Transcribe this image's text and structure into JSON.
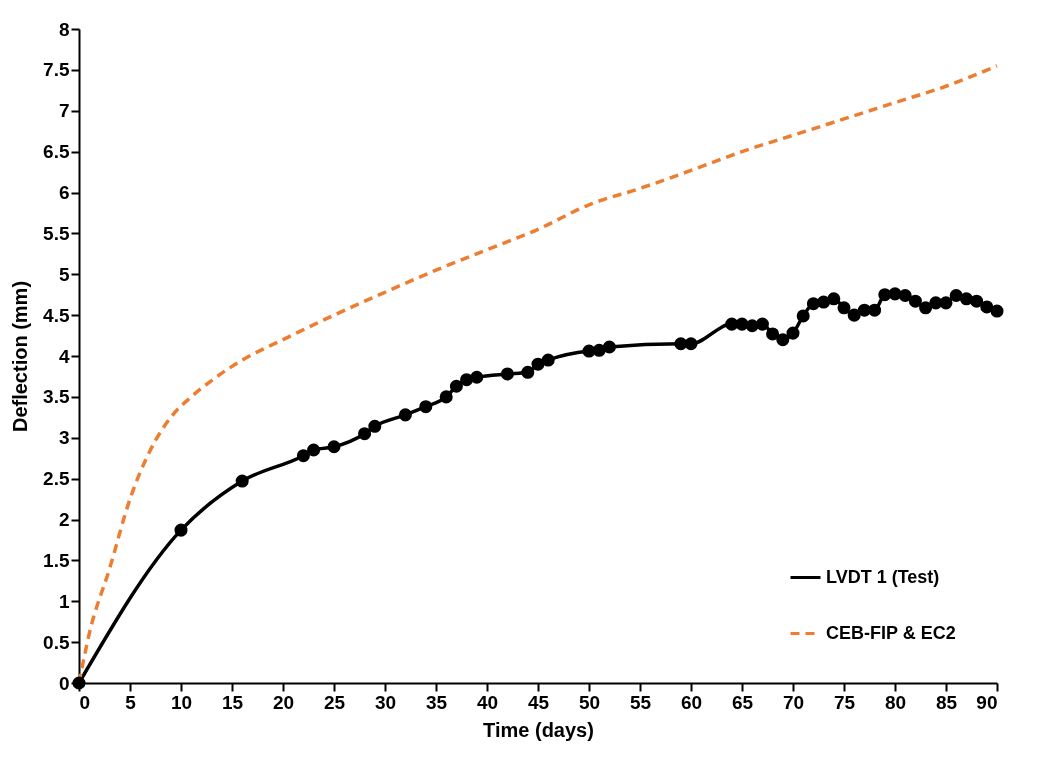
{
  "chart_data": {
    "type": "line",
    "xlabel": "Time (days)",
    "ylabel": "Deflection (mm)",
    "xlim": [
      0,
      90
    ],
    "ylim": [
      0,
      8
    ],
    "xticks": [
      0,
      5,
      10,
      15,
      20,
      25,
      30,
      35,
      40,
      45,
      50,
      55,
      60,
      65,
      70,
      75,
      80,
      85,
      90
    ],
    "yticks": [
      0,
      0.5,
      1,
      1.5,
      2,
      2.5,
      3,
      3.5,
      4,
      4.5,
      5,
      5.5,
      6,
      6.5,
      7,
      7.5,
      8
    ],
    "grid": false,
    "legend": "bottom right",
    "series": [
      {
        "name": "LVDT 1 (Test)",
        "color": "#000000",
        "marker": "circle",
        "line_style": "solid",
        "x": [
          0,
          10,
          16,
          22,
          23,
          25,
          28,
          29,
          32,
          34,
          36,
          37,
          38,
          39,
          42,
          44,
          45,
          46,
          50,
          51,
          52,
          59,
          60,
          64,
          65,
          66,
          67,
          68,
          69,
          70,
          71,
          72,
          73,
          74,
          75,
          76,
          77,
          78,
          79,
          80,
          81,
          82,
          83,
          84,
          85,
          86,
          87,
          88,
          89,
          90
        ],
        "values": [
          0,
          1.87,
          2.47,
          2.78,
          2.85,
          2.89,
          3.05,
          3.14,
          3.28,
          3.38,
          3.5,
          3.63,
          3.71,
          3.74,
          3.78,
          3.8,
          3.9,
          3.95,
          4.06,
          4.07,
          4.11,
          4.15,
          4.15,
          4.39,
          4.39,
          4.37,
          4.39,
          4.27,
          4.2,
          4.28,
          4.49,
          4.64,
          4.66,
          4.7,
          4.59,
          4.5,
          4.56,
          4.56,
          4.75,
          4.76,
          4.74,
          4.67,
          4.59,
          4.65,
          4.65,
          4.74,
          4.7,
          4.67,
          4.6,
          4.55
        ]
      },
      {
        "name": "CEB-FIP & EC2",
        "color": "#ed7d31",
        "marker": "none",
        "line_style": "dashed",
        "x": [
          0,
          1,
          3,
          5,
          7,
          9,
          11,
          13,
          16,
          20,
          25,
          30,
          35,
          40,
          45,
          50,
          55,
          60,
          65,
          70,
          75,
          80,
          85,
          90
        ],
        "values": [
          0,
          0.6,
          1.4,
          2.25,
          2.85,
          3.25,
          3.5,
          3.7,
          3.95,
          4.2,
          4.5,
          4.78,
          5.05,
          5.3,
          5.55,
          5.85,
          6.05,
          6.27,
          6.5,
          6.7,
          6.9,
          7.1,
          7.3,
          7.55
        ]
      }
    ]
  }
}
